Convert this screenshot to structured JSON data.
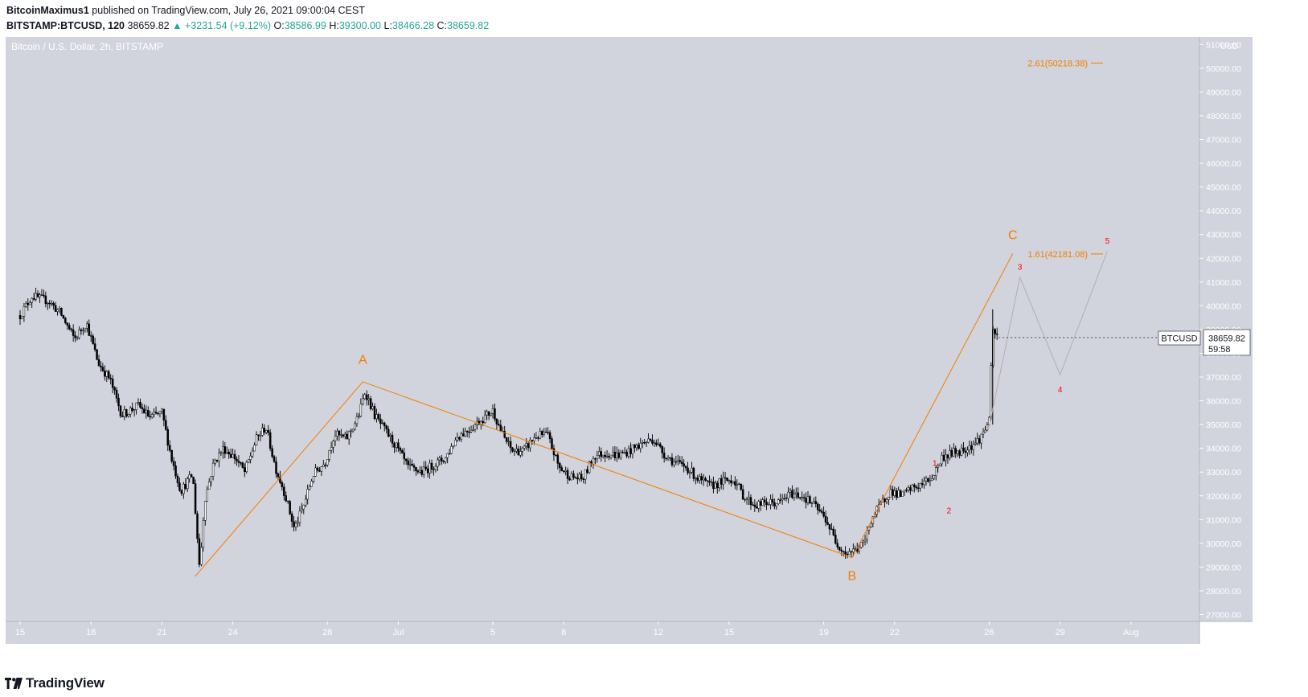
{
  "header": {
    "author": "BitcoinMaximus1",
    "published_text": " published on TradingView.com, July 26, 2021 09:00:04 CEST",
    "symbol": "BITSTAMP:BTCUSD, 120",
    "last": "38659.82",
    "change": "+3231.54 (+9.12%)",
    "change_arrow": "▲",
    "o_label": "O:",
    "o_value": "38586.99",
    "h_label": "H:",
    "h_value": "39300.00",
    "l_label": "L:",
    "l_value": "38466.28",
    "c_label": "C:",
    "c_value": "38659.82"
  },
  "chart_title": "Bitcoin / U.S. Dollar, 2h, BITSTAMP",
  "price_tag": {
    "symbol": "BTCUSD",
    "price": "38659.82",
    "countdown": "59:58"
  },
  "footer": {
    "brand": "TradingView",
    "logo_icon": "tradingview-logo-icon"
  },
  "colors": {
    "background": "#d1d4dc",
    "orange": "#f57c00",
    "red": "#ff0000",
    "candle": "#000000",
    "teal": "#26a69a"
  },
  "chart_data": {
    "type": "candlestick",
    "title": "Bitcoin / U.S. Dollar, 2h, BITSTAMP",
    "currency": "USD",
    "ylim": [
      26500,
      51500
    ],
    "xlim_days": [
      14.5,
      32.6
    ],
    "y_ticks": [
      27000,
      28000,
      29000,
      30000,
      31000,
      32000,
      33000,
      34000,
      35000,
      36000,
      37000,
      38000,
      39000,
      40000,
      41000,
      42000,
      43000,
      44000,
      45000,
      46000,
      47000,
      48000,
      49000,
      50000,
      51000
    ],
    "y_tick_labels": [
      "27000.00",
      "28000.00",
      "29000.00",
      "30000.00",
      "31000.00",
      "32000.00",
      "33000.00",
      "34000.00",
      "35000.00",
      "36000.00",
      "37000.00",
      "38000.00",
      "39000.00",
      "40000.00",
      "41000.00",
      "42000.00",
      "43000.00",
      "44000.00",
      "45000.00",
      "46000.00",
      "47000.00",
      "48000.00",
      "49000.00",
      "50000.00",
      "51000.00"
    ],
    "x_ticks": [
      {
        "day": 15,
        "label": "15"
      },
      {
        "day": 18,
        "label": "18"
      },
      {
        "day": 21,
        "label": "21"
      },
      {
        "day": 24,
        "label": "24"
      },
      {
        "day": 28,
        "label": "28"
      },
      {
        "day": 31,
        "label": "Jul"
      },
      {
        "day": 35,
        "label": "5"
      },
      {
        "day": 38,
        "label": "8"
      },
      {
        "day": 42,
        "label": "12"
      },
      {
        "day": 45,
        "label": "15"
      },
      {
        "day": 49,
        "label": "19"
      },
      {
        "day": 52,
        "label": "22"
      },
      {
        "day": 56,
        "label": "26"
      },
      {
        "day": 59,
        "label": "29"
      },
      {
        "day": 62,
        "label": "Aug"
      }
    ],
    "price_path": [
      [
        15.0,
        39600
      ],
      [
        15.5,
        40400
      ],
      [
        16.2,
        40200
      ],
      [
        16.7,
        39700
      ],
      [
        17.3,
        38600
      ],
      [
        17.8,
        39300
      ],
      [
        18.3,
        37600
      ],
      [
        18.8,
        36900
      ],
      [
        19.3,
        35400
      ],
      [
        20.0,
        35800
      ],
      [
        20.5,
        35300
      ],
      [
        21.0,
        35500
      ],
      [
        21.4,
        33600
      ],
      [
        21.8,
        32200
      ],
      [
        22.3,
        32900
      ],
      [
        22.6,
        28900
      ],
      [
        22.8,
        31800
      ],
      [
        23.2,
        33400
      ],
      [
        23.6,
        34000
      ],
      [
        24.1,
        33600
      ],
      [
        24.5,
        33000
      ],
      [
        25.0,
        34400
      ],
      [
        25.4,
        34900
      ],
      [
        25.8,
        33200
      ],
      [
        26.2,
        32100
      ],
      [
        26.6,
        30600
      ],
      [
        27.0,
        31600
      ],
      [
        27.4,
        32900
      ],
      [
        27.9,
        33400
      ],
      [
        28.3,
        34600
      ],
      [
        28.8,
        34400
      ],
      [
        29.3,
        35300
      ],
      [
        29.6,
        36400
      ],
      [
        30.0,
        35400
      ],
      [
        30.4,
        34800
      ],
      [
        30.9,
        34100
      ],
      [
        31.4,
        33200
      ],
      [
        32.0,
        33000
      ],
      [
        32.5,
        33300
      ],
      [
        33.0,
        33600
      ],
      [
        33.5,
        34500
      ],
      [
        34.0,
        34800
      ],
      [
        34.5,
        35200
      ],
      [
        35.0,
        35600
      ],
      [
        35.4,
        34600
      ],
      [
        35.8,
        33900
      ],
      [
        36.3,
        33900
      ],
      [
        36.8,
        34500
      ],
      [
        37.3,
        34600
      ],
      [
        37.8,
        33200
      ],
      [
        38.3,
        32800
      ],
      [
        38.8,
        32700
      ],
      [
        39.3,
        33700
      ],
      [
        39.8,
        33800
      ],
      [
        40.3,
        33700
      ],
      [
        40.8,
        33900
      ],
      [
        41.3,
        34200
      ],
      [
        41.8,
        34400
      ],
      [
        42.2,
        33800
      ],
      [
        42.7,
        33400
      ],
      [
        43.2,
        33200
      ],
      [
        43.7,
        32700
      ],
      [
        44.2,
        32400
      ],
      [
        44.7,
        32600
      ],
      [
        45.2,
        32700
      ],
      [
        45.6,
        32000
      ],
      [
        46.1,
        31600
      ],
      [
        46.6,
        31700
      ],
      [
        47.1,
        31700
      ],
      [
        47.6,
        32100
      ],
      [
        48.1,
        32000
      ],
      [
        48.6,
        31600
      ],
      [
        49.1,
        31000
      ],
      [
        49.5,
        30100
      ],
      [
        49.9,
        29600
      ],
      [
        50.3,
        29700
      ],
      [
        50.7,
        30000
      ],
      [
        51.0,
        31000
      ],
      [
        51.4,
        31600
      ],
      [
        51.8,
        32200
      ],
      [
        52.3,
        32000
      ],
      [
        52.7,
        32300
      ],
      [
        53.2,
        32500
      ],
      [
        53.6,
        32800
      ],
      [
        54.0,
        33600
      ],
      [
        54.4,
        33800
      ],
      [
        54.8,
        33900
      ],
      [
        55.2,
        34100
      ],
      [
        55.5,
        34300
      ],
      [
        55.8,
        34700
      ],
      [
        56.0,
        35300
      ],
      [
        56.15,
        38900
      ],
      [
        56.35,
        38700
      ]
    ],
    "abc_wave": {
      "points": [
        [
          22.4,
          28600
        ],
        [
          29.5,
          36800
        ],
        [
          50.2,
          29400
        ],
        [
          57.0,
          42200
        ]
      ],
      "labels": [
        "A",
        "B",
        "C"
      ],
      "color": "#f57c00"
    },
    "fib_levels": [
      {
        "label": "1.61(42181.08)",
        "value": 42181.08
      },
      {
        "label": "2.61(50218.38)",
        "value": 50218.38
      }
    ],
    "impulse_projection": {
      "points": [
        [
          56.0,
          34900
        ],
        [
          57.3,
          41200
        ],
        [
          59.0,
          37100
        ],
        [
          61.0,
          42300
        ]
      ],
      "color": "#b8aab0"
    },
    "wave_counts": [
      {
        "label": "1",
        "day": 53.7,
        "value": 33400
      },
      {
        "label": "2",
        "day": 54.3,
        "value": 31400
      },
      {
        "label": "3",
        "day": 57.3,
        "value": 41650
      },
      {
        "label": "4",
        "day": 59.0,
        "value": 36500
      },
      {
        "label": "5",
        "day": 61.0,
        "value": 42750
      }
    ],
    "last_price": 38659.82
  }
}
